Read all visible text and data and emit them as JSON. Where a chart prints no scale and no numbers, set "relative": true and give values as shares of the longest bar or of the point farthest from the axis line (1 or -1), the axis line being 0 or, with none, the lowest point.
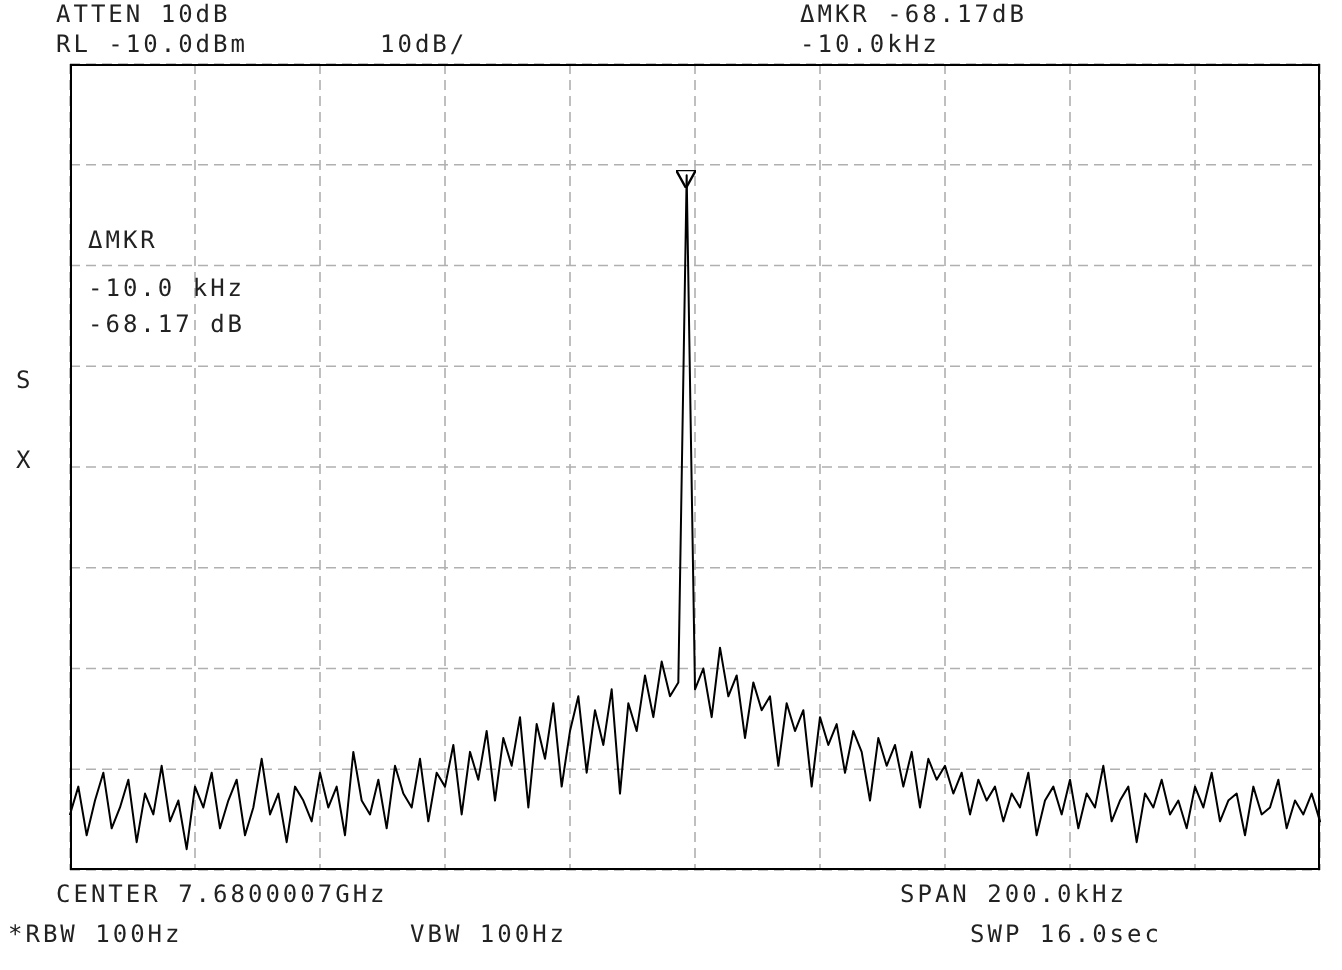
{
  "chart_data": {
    "type": "line",
    "relative": true,
    "grid": true,
    "marker": "none",
    "line_style": "solid",
    "annotations": [
      "ATTEN 10dB",
      "RL -10.0dBm",
      "10dB/",
      "ΔMKR -68.17dB",
      "-10.0kHz",
      "ΔMKR",
      "-10.0 kHz",
      "-68.17 dB",
      "S",
      "X",
      "CENTER 7.6800007GHz",
      "SPAN 200.0kHz",
      "*RBW 100Hz",
      "VBW 100Hz",
      "SWP 16.0sec"
    ],
    "categories": [
      null,
      null,
      null,
      null,
      null,
      null,
      null,
      null,
      null,
      null,
      null,
      null,
      null,
      null,
      null,
      null,
      null,
      null,
      null,
      null,
      null,
      null,
      null,
      null,
      null,
      null,
      null,
      null,
      null,
      null,
      null,
      null,
      null,
      null,
      null,
      null,
      null,
      null,
      null,
      null,
      null,
      null,
      null,
      null,
      null,
      null,
      null,
      null,
      null,
      null,
      null,
      null,
      null,
      null,
      null,
      null,
      null,
      null,
      null,
      null,
      null,
      null,
      null,
      null,
      null,
      null,
      null,
      null,
      null,
      null,
      null,
      null,
      null,
      null,
      null,
      null,
      null,
      null,
      null,
      null,
      null,
      null,
      null,
      null,
      null,
      null,
      null,
      null,
      null,
      null,
      null,
      null,
      null,
      null,
      null,
      null,
      null,
      null,
      null,
      null,
      null,
      null,
      null,
      null,
      null,
      null,
      null,
      null,
      null,
      null,
      null,
      null,
      null,
      null,
      null,
      null,
      null,
      null,
      null,
      null,
      null,
      null,
      null,
      null,
      null,
      null,
      null,
      null,
      null,
      null,
      null,
      null,
      null,
      null,
      null,
      null,
      null,
      null,
      null,
      null,
      null,
      null,
      null,
      null,
      null,
      null,
      null,
      null,
      null,
      null,
      null
    ],
    "series": [
      {
        "color": "#000000",
        "values": [
          0.08,
          0.12,
          0.05,
          0.1,
          0.14,
          0.06,
          0.09,
          0.13,
          0.04,
          0.11,
          0.08,
          0.15,
          0.07,
          0.1,
          0.03,
          0.12,
          0.09,
          0.14,
          0.06,
          0.1,
          0.13,
          0.05,
          0.09,
          0.16,
          0.08,
          0.11,
          0.04,
          0.12,
          0.1,
          0.07,
          0.14,
          0.09,
          0.12,
          0.05,
          0.17,
          0.1,
          0.08,
          0.13,
          0.06,
          0.15,
          0.11,
          0.09,
          0.16,
          0.07,
          0.14,
          0.12,
          0.18,
          0.08,
          0.17,
          0.13,
          0.2,
          0.1,
          0.19,
          0.15,
          0.22,
          0.09,
          0.21,
          0.16,
          0.24,
          0.12,
          0.2,
          0.25,
          0.14,
          0.23,
          0.18,
          0.26,
          0.11,
          0.24,
          0.2,
          0.28,
          0.22,
          0.3,
          0.25,
          0.27,
          1.0,
          0.26,
          0.29,
          0.22,
          0.32,
          0.25,
          0.28,
          0.19,
          0.27,
          0.23,
          0.25,
          0.15,
          0.24,
          0.2,
          0.23,
          0.12,
          0.22,
          0.18,
          0.21,
          0.14,
          0.2,
          0.17,
          0.1,
          0.19,
          0.15,
          0.18,
          0.12,
          0.17,
          0.09,
          0.16,
          0.13,
          0.15,
          0.11,
          0.14,
          0.08,
          0.13,
          0.1,
          0.12,
          0.07,
          0.11,
          0.09,
          0.14,
          0.05,
          0.1,
          0.12,
          0.08,
          0.13,
          0.06,
          0.11,
          0.09,
          0.15,
          0.07,
          0.1,
          0.12,
          0.04,
          0.11,
          0.09,
          0.13,
          0.08,
          0.1,
          0.06,
          0.12,
          0.09,
          0.14,
          0.07,
          0.1,
          0.11,
          0.05,
          0.12,
          0.08,
          0.09,
          0.13,
          0.06,
          0.1,
          0.08,
          0.11,
          0.07
        ]
      }
    ]
  }
}
